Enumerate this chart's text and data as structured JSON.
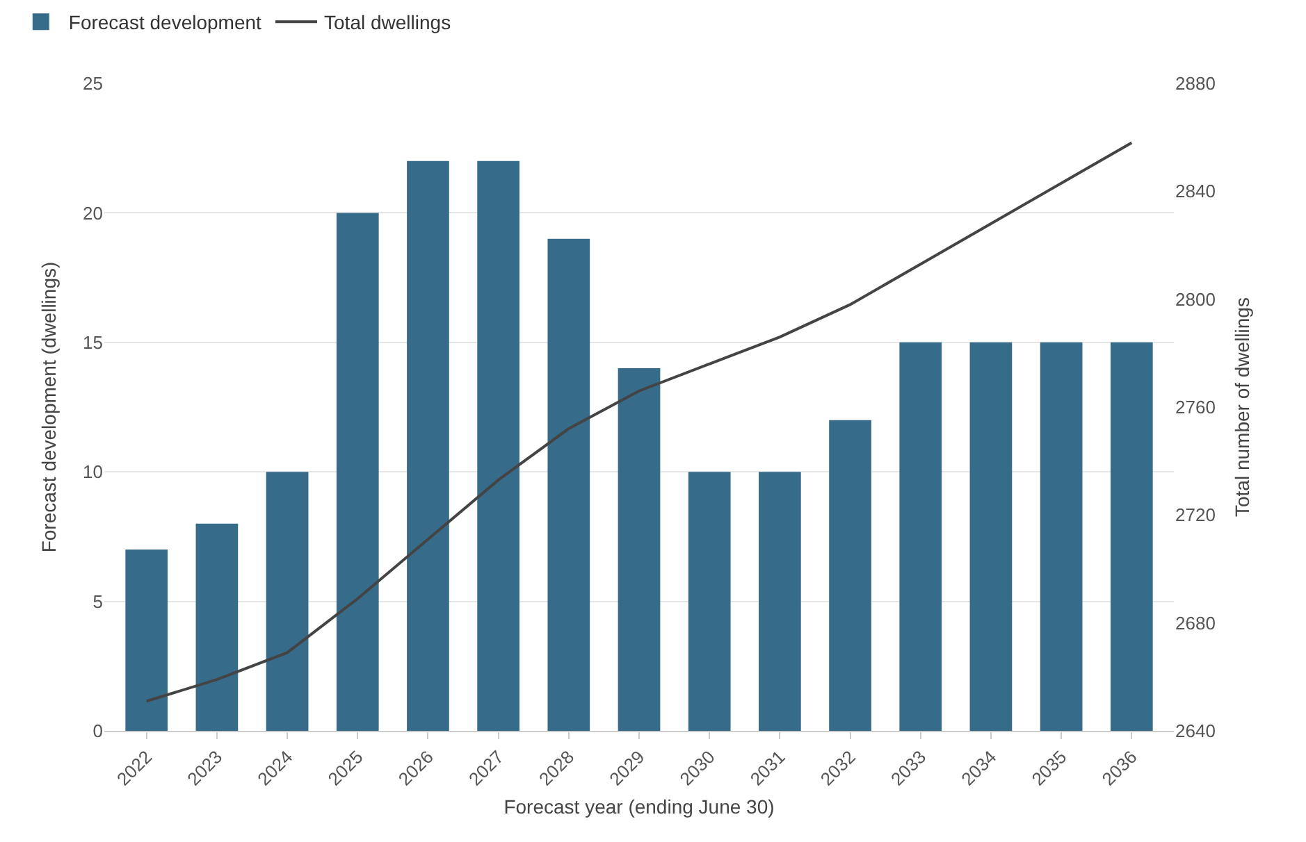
{
  "chart_data": {
    "type": "bar",
    "xlabel": "Forecast year (ending June 30)",
    "ylabel": "Forecast development (dwellings)",
    "y2label": "Total number of dwellings",
    "categories": [
      "2022",
      "2023",
      "2024",
      "2025",
      "2026",
      "2027",
      "2028",
      "2029",
      "2030",
      "2031",
      "2032",
      "2033",
      "2034",
      "2035",
      "2036"
    ],
    "series": [
      {
        "name": "Forecast development",
        "color": "#376b8a",
        "values": [
          7,
          8,
          10,
          20,
          22,
          22,
          19,
          14,
          10,
          10,
          12,
          15,
          15,
          15,
          15
        ]
      },
      {
        "name": "Total dwellings",
        "type": "line",
        "axis": "y2",
        "color": "#444444",
        "values": [
          2651,
          2659,
          2669,
          2689,
          2711,
          2733,
          2752,
          2766,
          2776,
          2786,
          2798,
          2813,
          2828,
          2843,
          2858
        ]
      }
    ],
    "ylim": [
      0,
      25
    ],
    "yticks": [
      0,
      5,
      10,
      15,
      20,
      25
    ],
    "y2lim": [
      2640,
      2880
    ],
    "y2ticks": [
      2640,
      2680,
      2720,
      2760,
      2800,
      2840,
      2880
    ],
    "grid": "y",
    "legend": "top left",
    "marker": "none",
    "line_style": "solid"
  }
}
